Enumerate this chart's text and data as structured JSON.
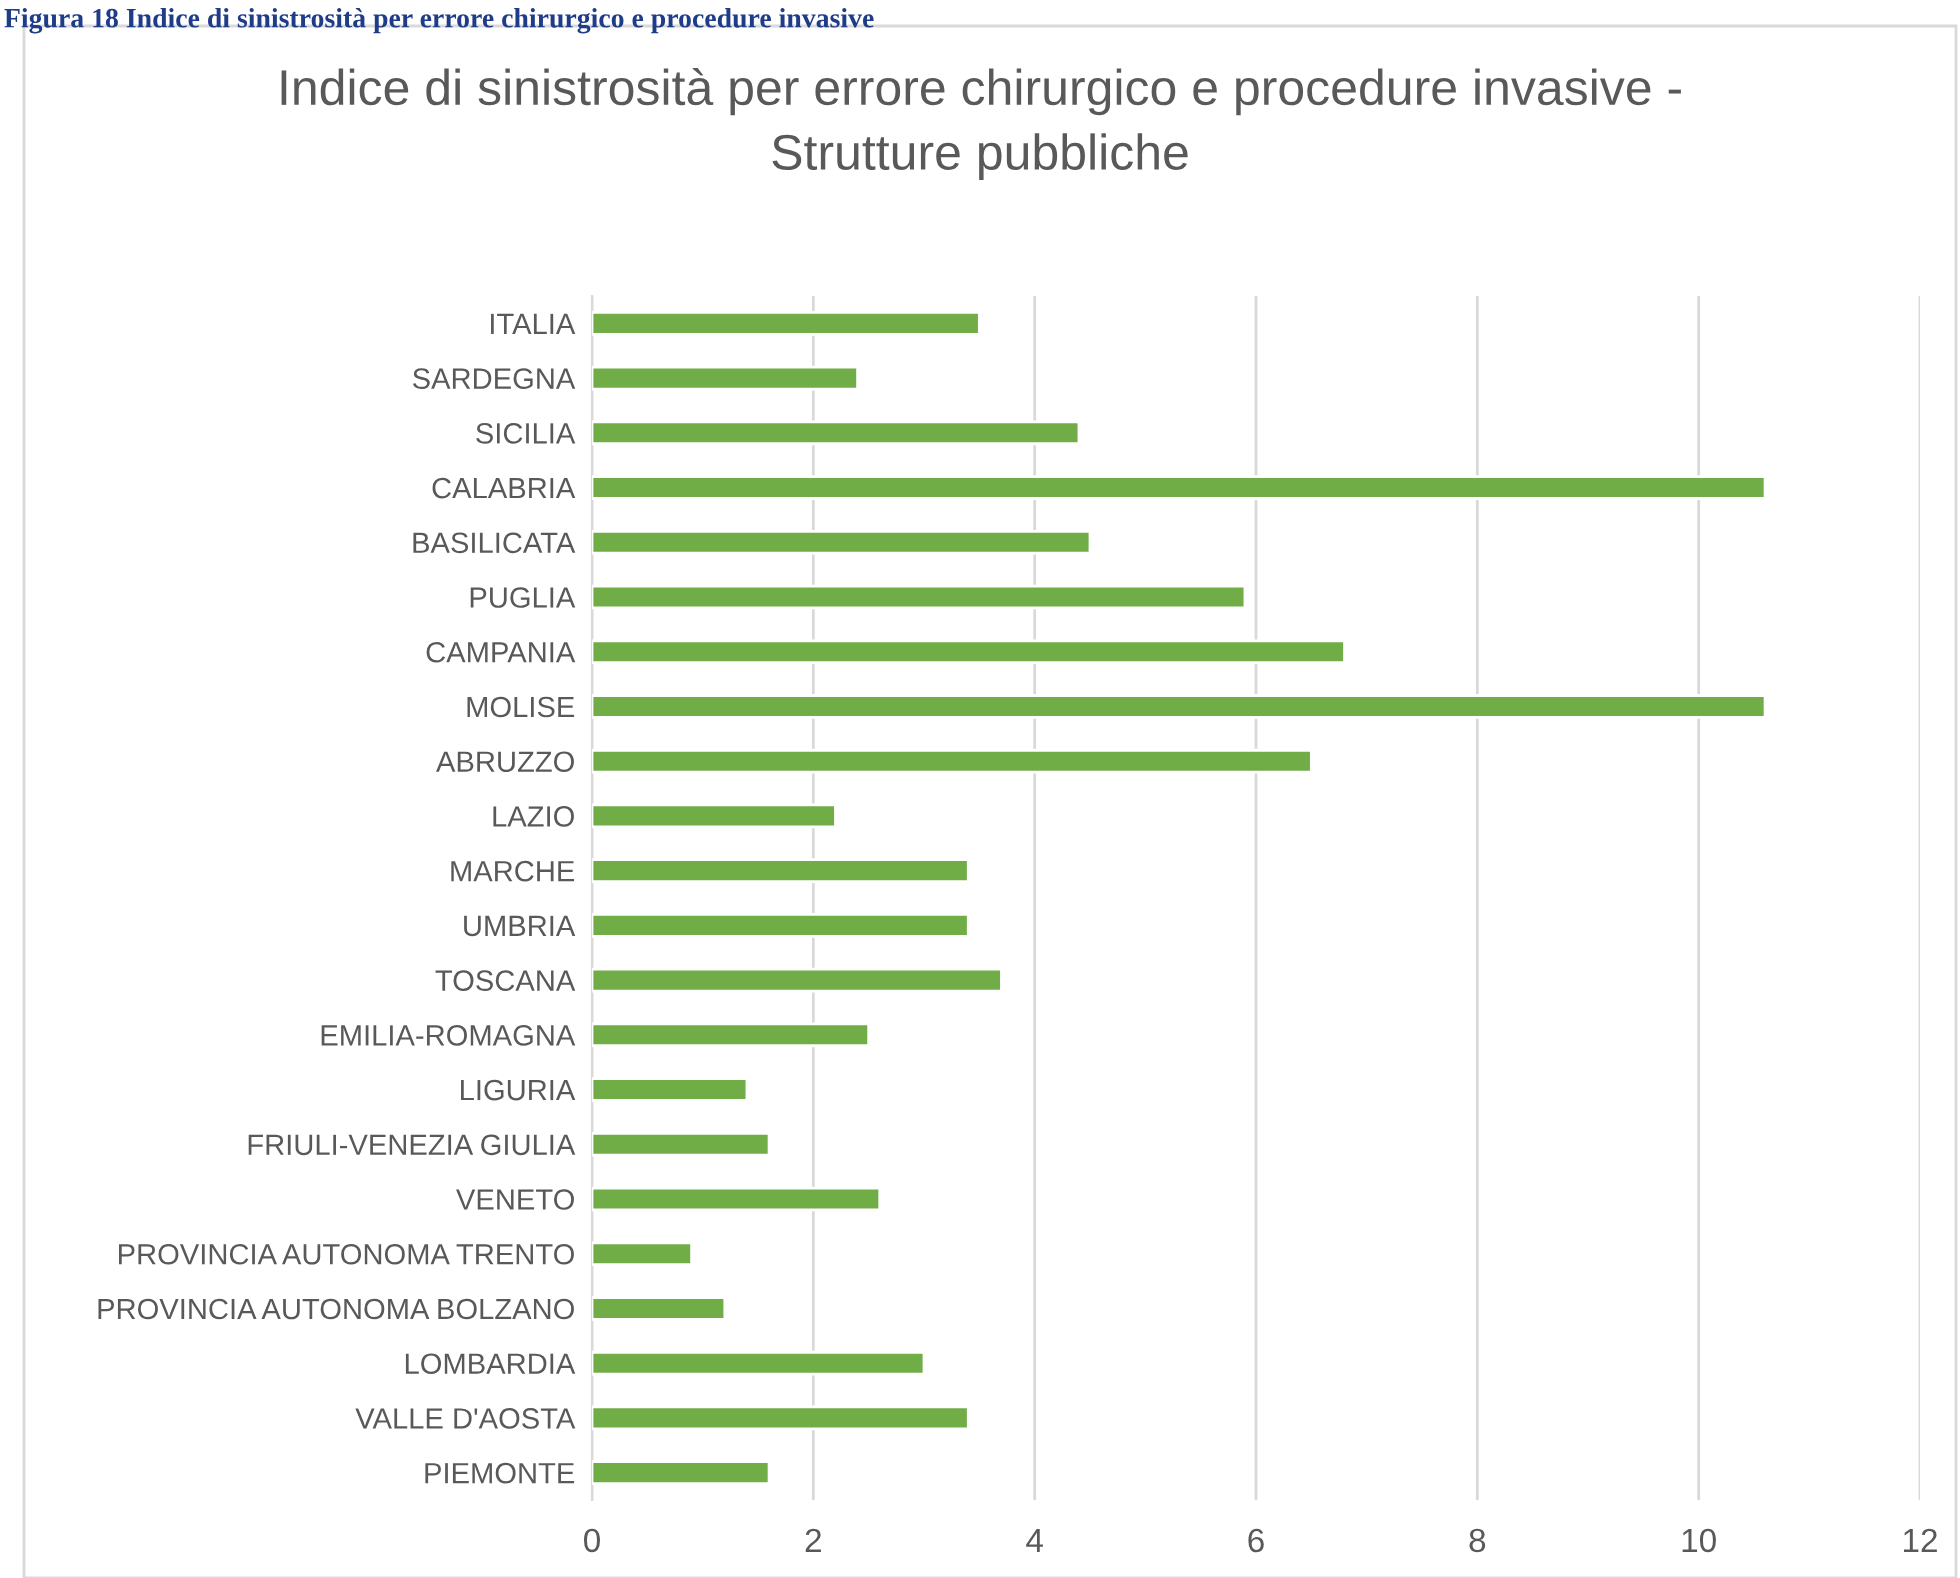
{
  "chart_data": {
    "type": "bar",
    "orientation": "horizontal",
    "title": "Indice di sinistrosità per errore chirurgico e procedure invasive -\nStrutture pubbliche",
    "annotations": [
      "Figura 18 Indice di sinistrosità per errore chirurgico e procedure invasive"
    ],
    "categories": [
      "ITALIA",
      "SARDEGNA",
      "SICILIA",
      "CALABRIA",
      "BASILICATA",
      "PUGLIA",
      "CAMPANIA",
      "MOLISE",
      "ABRUZZO",
      "LAZIO",
      "MARCHE",
      "UMBRIA",
      "TOSCANA",
      "EMILIA-ROMAGNA",
      "LIGURIA",
      "FRIULI-VENEZIA GIULIA",
      "VENETO",
      "PROVINCIA AUTONOMA TRENTO",
      "PROVINCIA AUTONOMA BOLZANO",
      "LOMBARDIA",
      "VALLE D'AOSTA",
      "PIEMONTE"
    ],
    "values": [
      3.5,
      2.4,
      4.4,
      10.6,
      4.5,
      5.9,
      6.8,
      10.6,
      6.5,
      2.2,
      3.4,
      3.4,
      3.7,
      2.5,
      1.4,
      1.6,
      2.6,
      0.9,
      1.2,
      3.0,
      3.4,
      1.6
    ],
    "color": "#70ad47",
    "xlim": [
      0,
      12
    ],
    "xticks": [
      0,
      2,
      4,
      6,
      8,
      10,
      12
    ],
    "grid": "x",
    "legend": false
  }
}
